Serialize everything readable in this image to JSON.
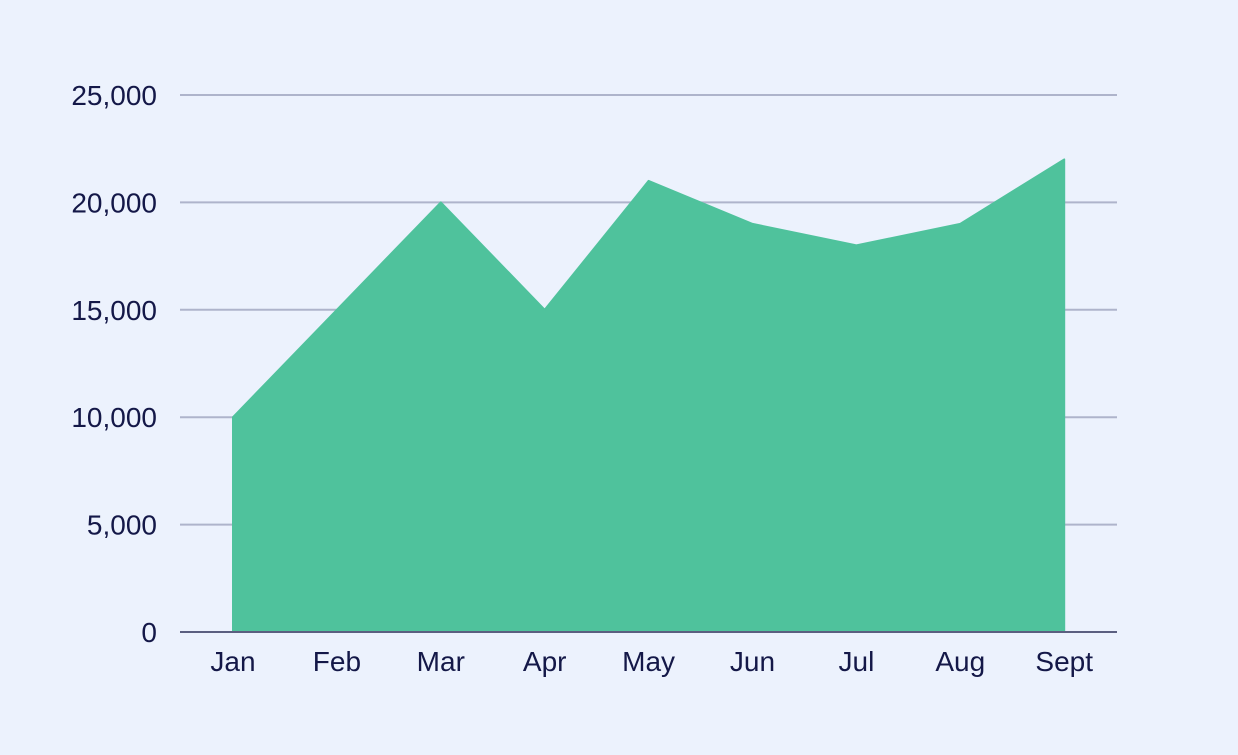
{
  "colors": {
    "background": "#ecf2fd",
    "area_fill": "#4fc29c",
    "grid": "#aeb4cb",
    "axis_line": "#5b5f80",
    "text": "#141848"
  },
  "chart_data": {
    "type": "area",
    "title": "",
    "xlabel": "",
    "ylabel": "",
    "categories": [
      "Jan",
      "Feb",
      "Mar",
      "Apr",
      "May",
      "Jun",
      "Jul",
      "Aug",
      "Sept"
    ],
    "values": [
      10000,
      15000,
      20000,
      15000,
      21000,
      19000,
      18000,
      19000,
      22000
    ],
    "ylim": [
      0,
      25000
    ],
    "yticks": [
      0,
      5000,
      10000,
      15000,
      20000,
      25000
    ],
    "ytick_labels": [
      "0",
      "5,000",
      "10,000",
      "15,000",
      "20,000",
      "25,000"
    ],
    "grid": true,
    "legend": "none"
  }
}
